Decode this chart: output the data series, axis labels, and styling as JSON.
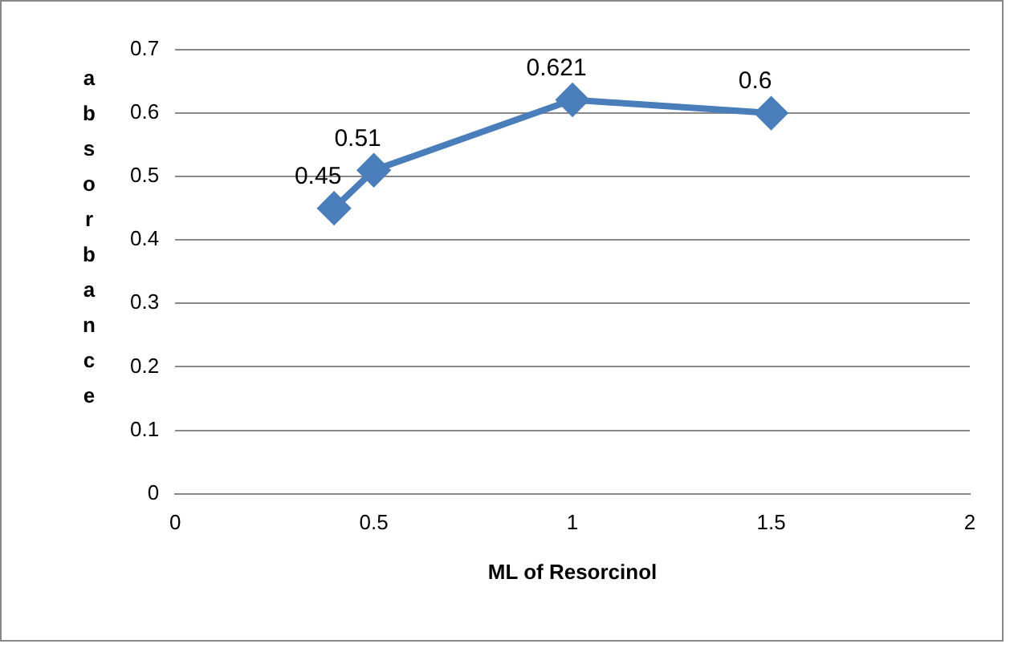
{
  "chart_data": {
    "type": "line",
    "xlabel": "ML of Resorcinol",
    "ylabel": "absorbance",
    "x": [
      0.4,
      0.5,
      1,
      1.5
    ],
    "series": [
      {
        "color": "#4a7ebb",
        "values": [
          0.45,
          0.51,
          0.621,
          0.6
        ]
      }
    ],
    "xlim": [
      0,
      2
    ],
    "xticks": [
      0,
      0.5,
      1,
      1.5,
      2
    ],
    "ylim": [
      0,
      0.7
    ],
    "yticks": [
      0,
      0.1,
      0.2,
      0.3,
      0.4,
      0.5,
      0.6,
      0.7
    ],
    "grid": "y",
    "marker": "diamond",
    "line_style": "solid",
    "data_labels": true,
    "legend": false
  }
}
